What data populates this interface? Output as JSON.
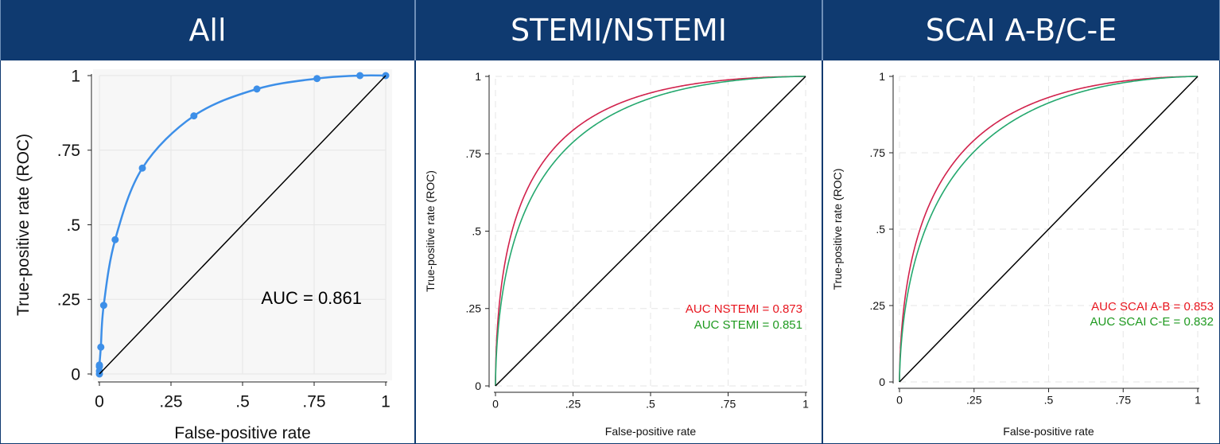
{
  "panels": [
    {
      "header": "All"
    },
    {
      "header": "STEMI/NSTEMI"
    },
    {
      "header": "SCAI A-B/C-E"
    }
  ],
  "colors": {
    "header_bg": "#0f3a70",
    "header_text": "#ffffff",
    "curve_blue": "#3d8fe8",
    "curve_red": "#d1224c",
    "curve_green": "#24a86e",
    "diagonal": "#000000",
    "label_red": "#e8161f",
    "label_green": "#1f9a20"
  },
  "chart_data": [
    {
      "type": "line",
      "title": "All",
      "xlabel": "False-positive rate",
      "ylabel": "True-positive rate (ROC)",
      "xlim": [
        0,
        1
      ],
      "ylim": [
        0,
        1
      ],
      "x_ticks": [
        "0",
        ".25",
        ".5",
        ".75",
        "1"
      ],
      "y_ticks": [
        "0",
        ".25",
        ".5",
        ".75",
        "1"
      ],
      "grid": true,
      "series": [
        {
          "color": "#3d8fe8",
          "markers": true,
          "x": [
            0,
            0,
            0,
            0,
            0.005,
            0.015,
            0.055,
            0.15,
            0.33,
            0.55,
            0.76,
            0.91,
            1.0
          ],
          "y": [
            0,
            0.01,
            0.025,
            0.03,
            0.09,
            0.23,
            0.45,
            0.69,
            0.865,
            0.955,
            0.99,
            1.0,
            1.0
          ]
        },
        {
          "color": "#000000",
          "x": [
            0,
            1
          ],
          "y": [
            0,
            1
          ]
        }
      ],
      "annotations": [
        {
          "text": "AUC = 0.861",
          "color": "#000000"
        }
      ]
    },
    {
      "type": "line",
      "title": "STEMI/NSTEMI",
      "xlabel": "False-positive rate",
      "ylabel": "True-positive rate (ROC)",
      "xlim": [
        0,
        1
      ],
      "ylim": [
        0,
        1
      ],
      "x_ticks": [
        "0",
        ".25",
        ".5",
        ".75",
        "1"
      ],
      "y_ticks": [
        "0",
        ".25",
        ".5",
        ".75",
        "1"
      ],
      "grid": true,
      "series": [
        {
          "color": "#d1224c",
          "auc": 0.873,
          "smooth_roc": true
        },
        {
          "color": "#24a86e",
          "auc": 0.851,
          "smooth_roc": true
        },
        {
          "color": "#000000",
          "x": [
            0,
            1
          ],
          "y": [
            0,
            1
          ]
        }
      ],
      "annotations": [
        {
          "text": "AUC NSTEMI = 0.873",
          "color": "#e8161f"
        },
        {
          "text": "AUC STEMI = 0.851",
          "color": "#1f9a20"
        }
      ]
    },
    {
      "type": "line",
      "title": "SCAI A-B/C-E",
      "xlabel": "False-positive rate",
      "ylabel": "True-positive rate (ROC)",
      "xlim": [
        0,
        1
      ],
      "ylim": [
        0,
        1
      ],
      "x_ticks": [
        "0",
        ".25",
        ".5",
        ".75",
        "1"
      ],
      "y_ticks": [
        "0",
        ".25",
        ".5",
        ".75",
        "1"
      ],
      "grid": true,
      "series": [
        {
          "color": "#d1224c",
          "auc": 0.853,
          "smooth_roc": true
        },
        {
          "color": "#24a86e",
          "auc": 0.832,
          "smooth_roc": true
        },
        {
          "color": "#000000",
          "x": [
            0,
            1
          ],
          "y": [
            0,
            1
          ]
        }
      ],
      "annotations": [
        {
          "text": "AUC SCAI A-B = 0.853",
          "color": "#e8161f"
        },
        {
          "text": "AUC SCAI C-E = 0.832",
          "color": "#1f9a20"
        }
      ]
    }
  ]
}
